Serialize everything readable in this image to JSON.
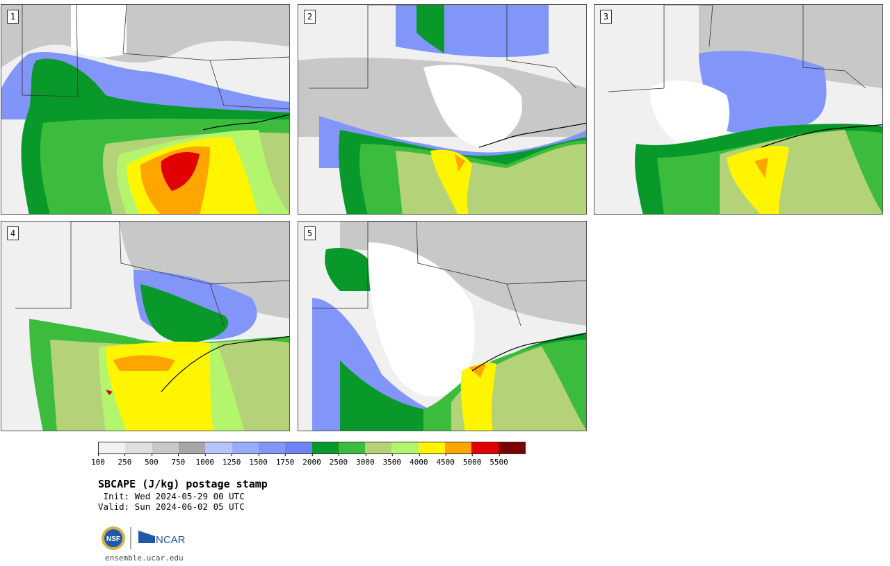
{
  "panels": [
    {
      "number": "1"
    },
    {
      "number": "2"
    },
    {
      "number": "3"
    },
    {
      "number": "4"
    },
    {
      "number": "5"
    }
  ],
  "legend": {
    "colors": [
      "#f2f2f2",
      "#e0e0e0",
      "#c8c8c8",
      "#a6a6a6",
      "#b9c4ff",
      "#98adff",
      "#8296fa",
      "#6e84f5",
      "#08992a",
      "#3cbc3c",
      "#b4d278",
      "#b4f56e",
      "#fff500",
      "#ffa500",
      "#e00000",
      "#7a0000"
    ],
    "ticks": [
      "100",
      "250",
      "500",
      "750",
      "1000",
      "1250",
      "1500",
      "1750",
      "2000",
      "2500",
      "3000",
      "3500",
      "4000",
      "4500",
      "5000",
      "5500"
    ]
  },
  "title": "SBCAPE (J/kg) postage stamp",
  "init": " Init: Wed 2024-05-29 00 UTC",
  "valid": "Valid: Sun 2024-06-02 05 UTC",
  "logo": {
    "left": "NSF",
    "right": "NCAR"
  },
  "website": "ensemble.ucar.edu"
}
